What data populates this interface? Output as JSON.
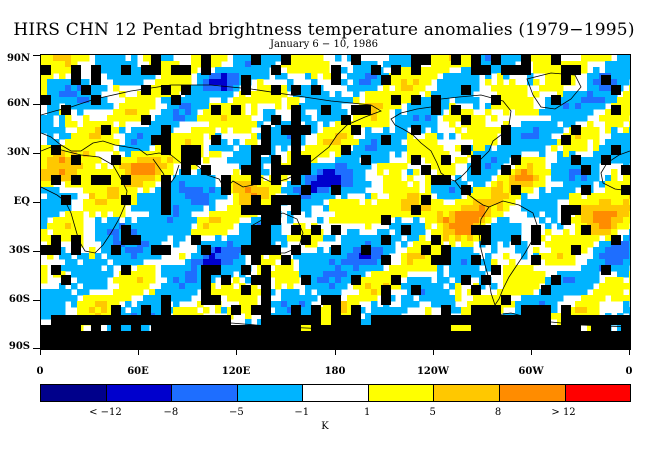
{
  "title": "HIRS CHN 12 Pentad brightness temperature anomalies (1979−1995)",
  "subtitle": "January 6 − 10, 1986",
  "lat_labels": [
    "90N",
    "60N",
    "30N",
    "EQ",
    "30S",
    "60S",
    "90S"
  ],
  "lon_labels": [
    "0",
    "60E",
    "120E",
    "180",
    "120W",
    "60W",
    "0"
  ],
  "colorbar": {
    "colors": [
      "#00008b",
      "#0000cd",
      "#1e6eff",
      "#00b4ff",
      "#ffffff",
      "#ffff00",
      "#ffc800",
      "#ff8c00",
      "#ff0000"
    ],
    "labels": [
      "< −12",
      "−8",
      "−5",
      "−1",
      "1",
      "5",
      "8",
      "> 12"
    ],
    "unit": "K"
  },
  "legend_colors": {
    "missing": "#000000",
    "coast": "#000000"
  }
}
